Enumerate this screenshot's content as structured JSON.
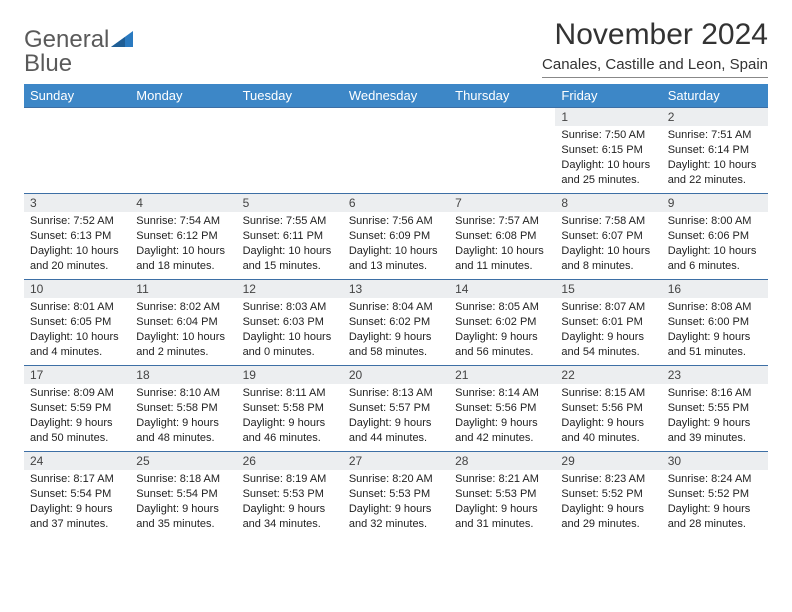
{
  "logo": {
    "line1": "General",
    "line2": "Blue"
  },
  "title": "November 2024",
  "location": "Canales, Castille and Leon, Spain",
  "colors": {
    "header_bg": "#3d87c7",
    "header_text": "#ffffff",
    "row_border": "#3d6fa5",
    "daynum_bg": "#eceef0",
    "logo_gray": "#5a5a5a",
    "logo_blue": "#2a7ac0"
  },
  "weekdays": [
    "Sunday",
    "Monday",
    "Tuesday",
    "Wednesday",
    "Thursday",
    "Friday",
    "Saturday"
  ],
  "weeks": [
    [
      null,
      null,
      null,
      null,
      null,
      {
        "n": "1",
        "sr": "Sunrise: 7:50 AM",
        "ss": "Sunset: 6:15 PM",
        "dl1": "Daylight: 10 hours",
        "dl2": "and 25 minutes."
      },
      {
        "n": "2",
        "sr": "Sunrise: 7:51 AM",
        "ss": "Sunset: 6:14 PM",
        "dl1": "Daylight: 10 hours",
        "dl2": "and 22 minutes."
      }
    ],
    [
      {
        "n": "3",
        "sr": "Sunrise: 7:52 AM",
        "ss": "Sunset: 6:13 PM",
        "dl1": "Daylight: 10 hours",
        "dl2": "and 20 minutes."
      },
      {
        "n": "4",
        "sr": "Sunrise: 7:54 AM",
        "ss": "Sunset: 6:12 PM",
        "dl1": "Daylight: 10 hours",
        "dl2": "and 18 minutes."
      },
      {
        "n": "5",
        "sr": "Sunrise: 7:55 AM",
        "ss": "Sunset: 6:11 PM",
        "dl1": "Daylight: 10 hours",
        "dl2": "and 15 minutes."
      },
      {
        "n": "6",
        "sr": "Sunrise: 7:56 AM",
        "ss": "Sunset: 6:09 PM",
        "dl1": "Daylight: 10 hours",
        "dl2": "and 13 minutes."
      },
      {
        "n": "7",
        "sr": "Sunrise: 7:57 AM",
        "ss": "Sunset: 6:08 PM",
        "dl1": "Daylight: 10 hours",
        "dl2": "and 11 minutes."
      },
      {
        "n": "8",
        "sr": "Sunrise: 7:58 AM",
        "ss": "Sunset: 6:07 PM",
        "dl1": "Daylight: 10 hours",
        "dl2": "and 8 minutes."
      },
      {
        "n": "9",
        "sr": "Sunrise: 8:00 AM",
        "ss": "Sunset: 6:06 PM",
        "dl1": "Daylight: 10 hours",
        "dl2": "and 6 minutes."
      }
    ],
    [
      {
        "n": "10",
        "sr": "Sunrise: 8:01 AM",
        "ss": "Sunset: 6:05 PM",
        "dl1": "Daylight: 10 hours",
        "dl2": "and 4 minutes."
      },
      {
        "n": "11",
        "sr": "Sunrise: 8:02 AM",
        "ss": "Sunset: 6:04 PM",
        "dl1": "Daylight: 10 hours",
        "dl2": "and 2 minutes."
      },
      {
        "n": "12",
        "sr": "Sunrise: 8:03 AM",
        "ss": "Sunset: 6:03 PM",
        "dl1": "Daylight: 10 hours",
        "dl2": "and 0 minutes."
      },
      {
        "n": "13",
        "sr": "Sunrise: 8:04 AM",
        "ss": "Sunset: 6:02 PM",
        "dl1": "Daylight: 9 hours",
        "dl2": "and 58 minutes."
      },
      {
        "n": "14",
        "sr": "Sunrise: 8:05 AM",
        "ss": "Sunset: 6:02 PM",
        "dl1": "Daylight: 9 hours",
        "dl2": "and 56 minutes."
      },
      {
        "n": "15",
        "sr": "Sunrise: 8:07 AM",
        "ss": "Sunset: 6:01 PM",
        "dl1": "Daylight: 9 hours",
        "dl2": "and 54 minutes."
      },
      {
        "n": "16",
        "sr": "Sunrise: 8:08 AM",
        "ss": "Sunset: 6:00 PM",
        "dl1": "Daylight: 9 hours",
        "dl2": "and 51 minutes."
      }
    ],
    [
      {
        "n": "17",
        "sr": "Sunrise: 8:09 AM",
        "ss": "Sunset: 5:59 PM",
        "dl1": "Daylight: 9 hours",
        "dl2": "and 50 minutes."
      },
      {
        "n": "18",
        "sr": "Sunrise: 8:10 AM",
        "ss": "Sunset: 5:58 PM",
        "dl1": "Daylight: 9 hours",
        "dl2": "and 48 minutes."
      },
      {
        "n": "19",
        "sr": "Sunrise: 8:11 AM",
        "ss": "Sunset: 5:58 PM",
        "dl1": "Daylight: 9 hours",
        "dl2": "and 46 minutes."
      },
      {
        "n": "20",
        "sr": "Sunrise: 8:13 AM",
        "ss": "Sunset: 5:57 PM",
        "dl1": "Daylight: 9 hours",
        "dl2": "and 44 minutes."
      },
      {
        "n": "21",
        "sr": "Sunrise: 8:14 AM",
        "ss": "Sunset: 5:56 PM",
        "dl1": "Daylight: 9 hours",
        "dl2": "and 42 minutes."
      },
      {
        "n": "22",
        "sr": "Sunrise: 8:15 AM",
        "ss": "Sunset: 5:56 PM",
        "dl1": "Daylight: 9 hours",
        "dl2": "and 40 minutes."
      },
      {
        "n": "23",
        "sr": "Sunrise: 8:16 AM",
        "ss": "Sunset: 5:55 PM",
        "dl1": "Daylight: 9 hours",
        "dl2": "and 39 minutes."
      }
    ],
    [
      {
        "n": "24",
        "sr": "Sunrise: 8:17 AM",
        "ss": "Sunset: 5:54 PM",
        "dl1": "Daylight: 9 hours",
        "dl2": "and 37 minutes."
      },
      {
        "n": "25",
        "sr": "Sunrise: 8:18 AM",
        "ss": "Sunset: 5:54 PM",
        "dl1": "Daylight: 9 hours",
        "dl2": "and 35 minutes."
      },
      {
        "n": "26",
        "sr": "Sunrise: 8:19 AM",
        "ss": "Sunset: 5:53 PM",
        "dl1": "Daylight: 9 hours",
        "dl2": "and 34 minutes."
      },
      {
        "n": "27",
        "sr": "Sunrise: 8:20 AM",
        "ss": "Sunset: 5:53 PM",
        "dl1": "Daylight: 9 hours",
        "dl2": "and 32 minutes."
      },
      {
        "n": "28",
        "sr": "Sunrise: 8:21 AM",
        "ss": "Sunset: 5:53 PM",
        "dl1": "Daylight: 9 hours",
        "dl2": "and 31 minutes."
      },
      {
        "n": "29",
        "sr": "Sunrise: 8:23 AM",
        "ss": "Sunset: 5:52 PM",
        "dl1": "Daylight: 9 hours",
        "dl2": "and 29 minutes."
      },
      {
        "n": "30",
        "sr": "Sunrise: 8:24 AM",
        "ss": "Sunset: 5:52 PM",
        "dl1": "Daylight: 9 hours",
        "dl2": "and 28 minutes."
      }
    ]
  ]
}
